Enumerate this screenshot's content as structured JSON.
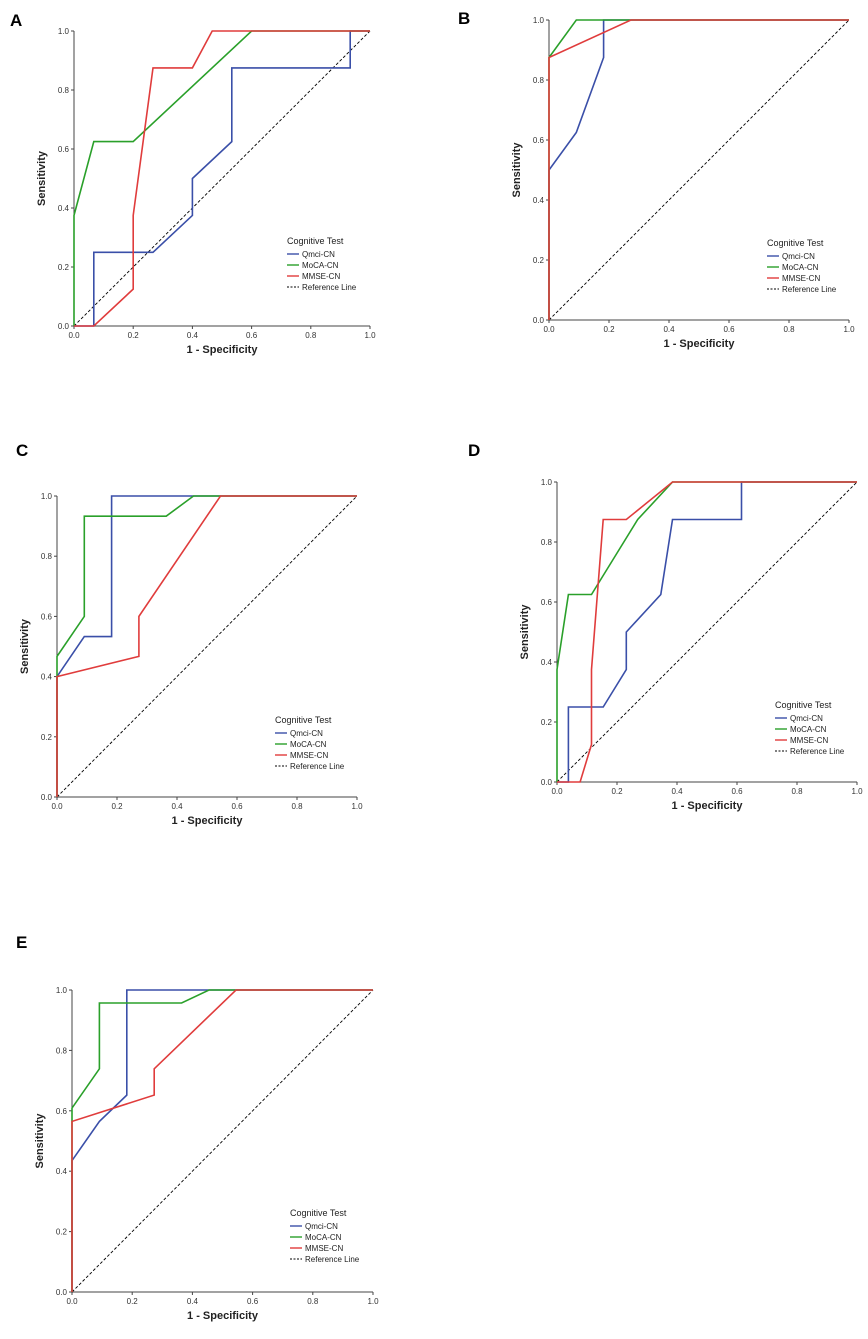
{
  "figure": {
    "background": "#ffffff"
  },
  "chart_data": [
    {
      "panel": "A",
      "type": "line",
      "title": "",
      "xlabel": "1 - Specificity",
      "ylabel": "Sensitivity",
      "xlim": [
        0,
        1
      ],
      "ylim": [
        0,
        1
      ],
      "xticks": [
        "0.0",
        "0.2",
        "0.4",
        "0.6",
        "0.8",
        "1.0"
      ],
      "yticks": [
        "0.0",
        "0.2",
        "0.4",
        "0.6",
        "0.8",
        "1.0"
      ],
      "legend_title": "Cognitive Test",
      "legend_position": "lower-right",
      "series": [
        {
          "name": "Qmci-CN",
          "color": "#3a4fa8",
          "x": [
            0,
            0.067,
            0.067,
            0.067,
            0.267,
            0.4,
            0.4,
            0.533,
            0.533,
            0.933,
            0.933,
            1
          ],
          "y": [
            0,
            0,
            0.25,
            0.25,
            0.25,
            0.375,
            0.5,
            0.625,
            0.875,
            0.875,
            1,
            1
          ]
        },
        {
          "name": "MoCA-CN",
          "color": "#2aa02a",
          "x": [
            0,
            0,
            0.067,
            0.2,
            0.6,
            1
          ],
          "y": [
            0,
            0.375,
            0.625,
            0.625,
            1,
            1
          ]
        },
        {
          "name": "MMSE-CN",
          "color": "#e03c3c",
          "x": [
            0,
            0,
            0.067,
            0.2,
            0.2,
            0.267,
            0.4,
            0.467,
            1
          ],
          "y": [
            0,
            0,
            0,
            0.125,
            0.375,
            0.875,
            0.875,
            1,
            1
          ]
        },
        {
          "name": "Reference Line",
          "color": "#000000",
          "dashed": true,
          "x": [
            0,
            1
          ],
          "y": [
            0,
            1
          ]
        }
      ]
    },
    {
      "panel": "B",
      "type": "line",
      "title": "",
      "xlabel": "1 - Specificity",
      "ylabel": "Sensitivity",
      "xlim": [
        0,
        1
      ],
      "ylim": [
        0,
        1
      ],
      "xticks": [
        "0.0",
        "0.2",
        "0.4",
        "0.6",
        "0.8",
        "1.0"
      ],
      "yticks": [
        "0.0",
        "0.2",
        "0.4",
        "0.6",
        "0.8",
        "1.0"
      ],
      "legend_title": "Cognitive Test",
      "legend_position": "lower-right",
      "series": [
        {
          "name": "Qmci-CN",
          "color": "#3a4fa8",
          "x": [
            0,
            0,
            0.091,
            0.182,
            0.182,
            1
          ],
          "y": [
            0,
            0.5,
            0.625,
            0.875,
            1,
            1
          ]
        },
        {
          "name": "MoCA-CN",
          "color": "#2aa02a",
          "x": [
            0,
            0,
            0.091,
            1
          ],
          "y": [
            0,
            0.875,
            1,
            1
          ]
        },
        {
          "name": "MMSE-CN",
          "color": "#e03c3c",
          "x": [
            0,
            0,
            0.273,
            1
          ],
          "y": [
            0,
            0.875,
            1,
            1
          ]
        },
        {
          "name": "Reference Line",
          "color": "#000000",
          "dashed": true,
          "x": [
            0,
            1
          ],
          "y": [
            0,
            1
          ]
        }
      ]
    },
    {
      "panel": "C",
      "type": "line",
      "title": "",
      "xlabel": "1 - Specificity",
      "ylabel": "Sensitivity",
      "xlim": [
        0,
        1
      ],
      "ylim": [
        0,
        1
      ],
      "xticks": [
        "0.0",
        "0.2",
        "0.4",
        "0.6",
        "0.8",
        "1.0"
      ],
      "yticks": [
        "0.0",
        "0.2",
        "0.4",
        "0.6",
        "0.8",
        "1.0"
      ],
      "legend_title": "Cognitive Test",
      "legend_position": "lower-right",
      "series": [
        {
          "name": "Qmci-CN",
          "color": "#3a4fa8",
          "x": [
            0,
            0,
            0.091,
            0.182,
            0.182,
            0.364,
            1
          ],
          "y": [
            0,
            0.4,
            0.533,
            0.533,
            1,
            1,
            1
          ]
        },
        {
          "name": "MoCA-CN",
          "color": "#2aa02a",
          "x": [
            0,
            0,
            0.091,
            0.091,
            0.364,
            0.455,
            1
          ],
          "y": [
            0,
            0.467,
            0.6,
            0.933,
            0.933,
            1,
            1
          ]
        },
        {
          "name": "MMSE-CN",
          "color": "#e03c3c",
          "x": [
            0,
            0,
            0.273,
            0.273,
            0.545,
            1
          ],
          "y": [
            0,
            0.4,
            0.467,
            0.6,
            1,
            1
          ]
        },
        {
          "name": "Reference Line",
          "color": "#000000",
          "dashed": true,
          "x": [
            0,
            1
          ],
          "y": [
            0,
            1
          ]
        }
      ]
    },
    {
      "panel": "D",
      "type": "line",
      "title": "",
      "xlabel": "1 - Specificity",
      "ylabel": "Sensitivity",
      "xlim": [
        0,
        1
      ],
      "ylim": [
        0,
        1
      ],
      "xticks": [
        "0.0",
        "0.2",
        "0.4",
        "0.6",
        "0.8",
        "1.0"
      ],
      "yticks": [
        "0.0",
        "0.2",
        "0.4",
        "0.6",
        "0.8",
        "1.0"
      ],
      "legend_title": "Cognitive Test",
      "legend_position": "lower-right",
      "series": [
        {
          "name": "Qmci-CN",
          "color": "#3a4fa8",
          "x": [
            0,
            0.038,
            0.038,
            0.154,
            0.231,
            0.231,
            0.346,
            0.385,
            0.615,
            0.615,
            1
          ],
          "y": [
            0,
            0,
            0.25,
            0.25,
            0.375,
            0.5,
            0.625,
            0.875,
            0.875,
            1,
            1
          ]
        },
        {
          "name": "MoCA-CN",
          "color": "#2aa02a",
          "x": [
            0,
            0,
            0.038,
            0.115,
            0.192,
            0.269,
            0.385,
            1
          ],
          "y": [
            0,
            0.375,
            0.625,
            0.625,
            0.75,
            0.875,
            1,
            1
          ]
        },
        {
          "name": "MMSE-CN",
          "color": "#e03c3c",
          "x": [
            0,
            0.038,
            0.077,
            0.115,
            0.115,
            0.154,
            0.231,
            0.385,
            1
          ],
          "y": [
            0,
            0,
            0,
            0.125,
            0.375,
            0.875,
            0.875,
            1,
            1
          ]
        },
        {
          "name": "Reference Line",
          "color": "#000000",
          "dashed": true,
          "x": [
            0,
            1
          ],
          "y": [
            0,
            1
          ]
        }
      ]
    },
    {
      "panel": "E",
      "type": "line",
      "title": "",
      "xlabel": "1 - Specificity",
      "ylabel": "Sensitivity",
      "xlim": [
        0,
        1
      ],
      "ylim": [
        0,
        1
      ],
      "xticks": [
        "0.0",
        "0.2",
        "0.4",
        "0.6",
        "0.8",
        "1.0"
      ],
      "yticks": [
        "0.0",
        "0.2",
        "0.4",
        "0.6",
        "0.8",
        "1.0"
      ],
      "legend_title": "Cognitive Test",
      "legend_position": "lower-right",
      "series": [
        {
          "name": "Qmci-CN",
          "color": "#3a4fa8",
          "x": [
            0,
            0,
            0.091,
            0.182,
            0.182,
            0.455,
            1
          ],
          "y": [
            0,
            0.435,
            0.565,
            0.652,
            1,
            1,
            1
          ]
        },
        {
          "name": "MoCA-CN",
          "color": "#2aa02a",
          "x": [
            0,
            0,
            0.091,
            0.091,
            0.364,
            0.455,
            1
          ],
          "y": [
            0,
            0.609,
            0.739,
            0.957,
            0.957,
            1,
            1
          ]
        },
        {
          "name": "MMSE-CN",
          "color": "#e03c3c",
          "x": [
            0,
            0,
            0.273,
            0.273,
            0.545,
            1
          ],
          "y": [
            0,
            0.565,
            0.652,
            0.739,
            1,
            1
          ]
        },
        {
          "name": "Reference Line",
          "color": "#000000",
          "dashed": true,
          "x": [
            0,
            1
          ],
          "y": [
            0,
            1
          ]
        }
      ]
    }
  ]
}
